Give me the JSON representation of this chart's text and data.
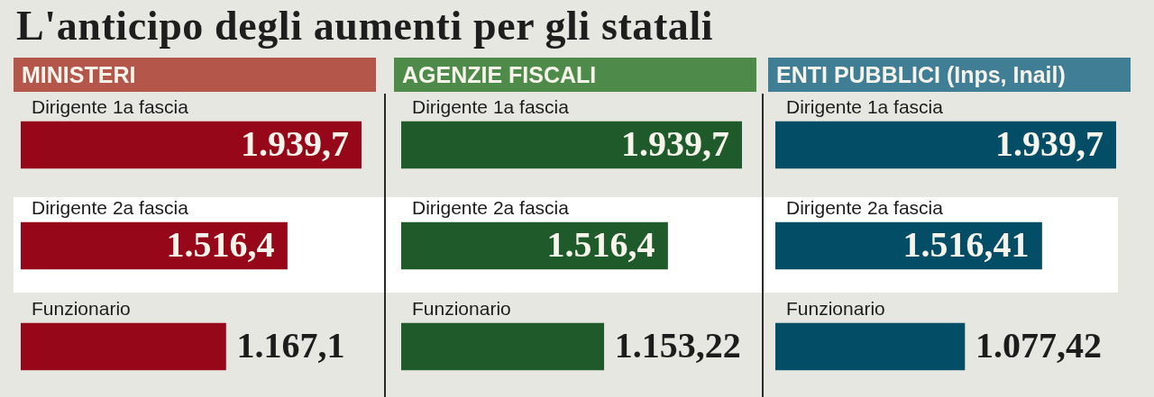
{
  "chart_data": [
    {
      "type": "bar",
      "orientation": "horizontal",
      "title": "L'anticipo degli aumenti per gli statali",
      "subtitle": "MINISTERI",
      "categories": [
        "Dirigente 1a fascia",
        "Dirigente 2a fascia",
        "Funzionario"
      ],
      "values": [
        1939.7,
        1516.4,
        1167.1
      ],
      "value_labels": [
        "1.939,7",
        "1.516,4",
        "1.167,1"
      ],
      "color": "#96071a",
      "tick_labels": "y"
    },
    {
      "type": "bar",
      "orientation": "horizontal",
      "subtitle": "AGENZIE FISCALI",
      "categories": [
        "Dirigente 1a fascia",
        "Dirigente 2a fascia",
        "Funzionario"
      ],
      "values": [
        1939.7,
        1516.4,
        1153.22
      ],
      "value_labels": [
        "1.939,7",
        "1.516,4",
        "1.153,22"
      ],
      "color": "#1f5a2b",
      "tick_labels": "y"
    },
    {
      "type": "bar",
      "orientation": "horizontal",
      "subtitle": "ENTI PUBBLICI (Inps, Inail)",
      "categories": [
        "Dirigente 1a fascia",
        "Dirigente 2a fascia",
        "Funzionario"
      ],
      "values": [
        1939.7,
        1516.41,
        1077.42
      ],
      "value_labels": [
        "1.939,7",
        "1.516,41",
        "1.077,42"
      ],
      "color": "#034e66",
      "tick_labels": "y"
    }
  ]
}
